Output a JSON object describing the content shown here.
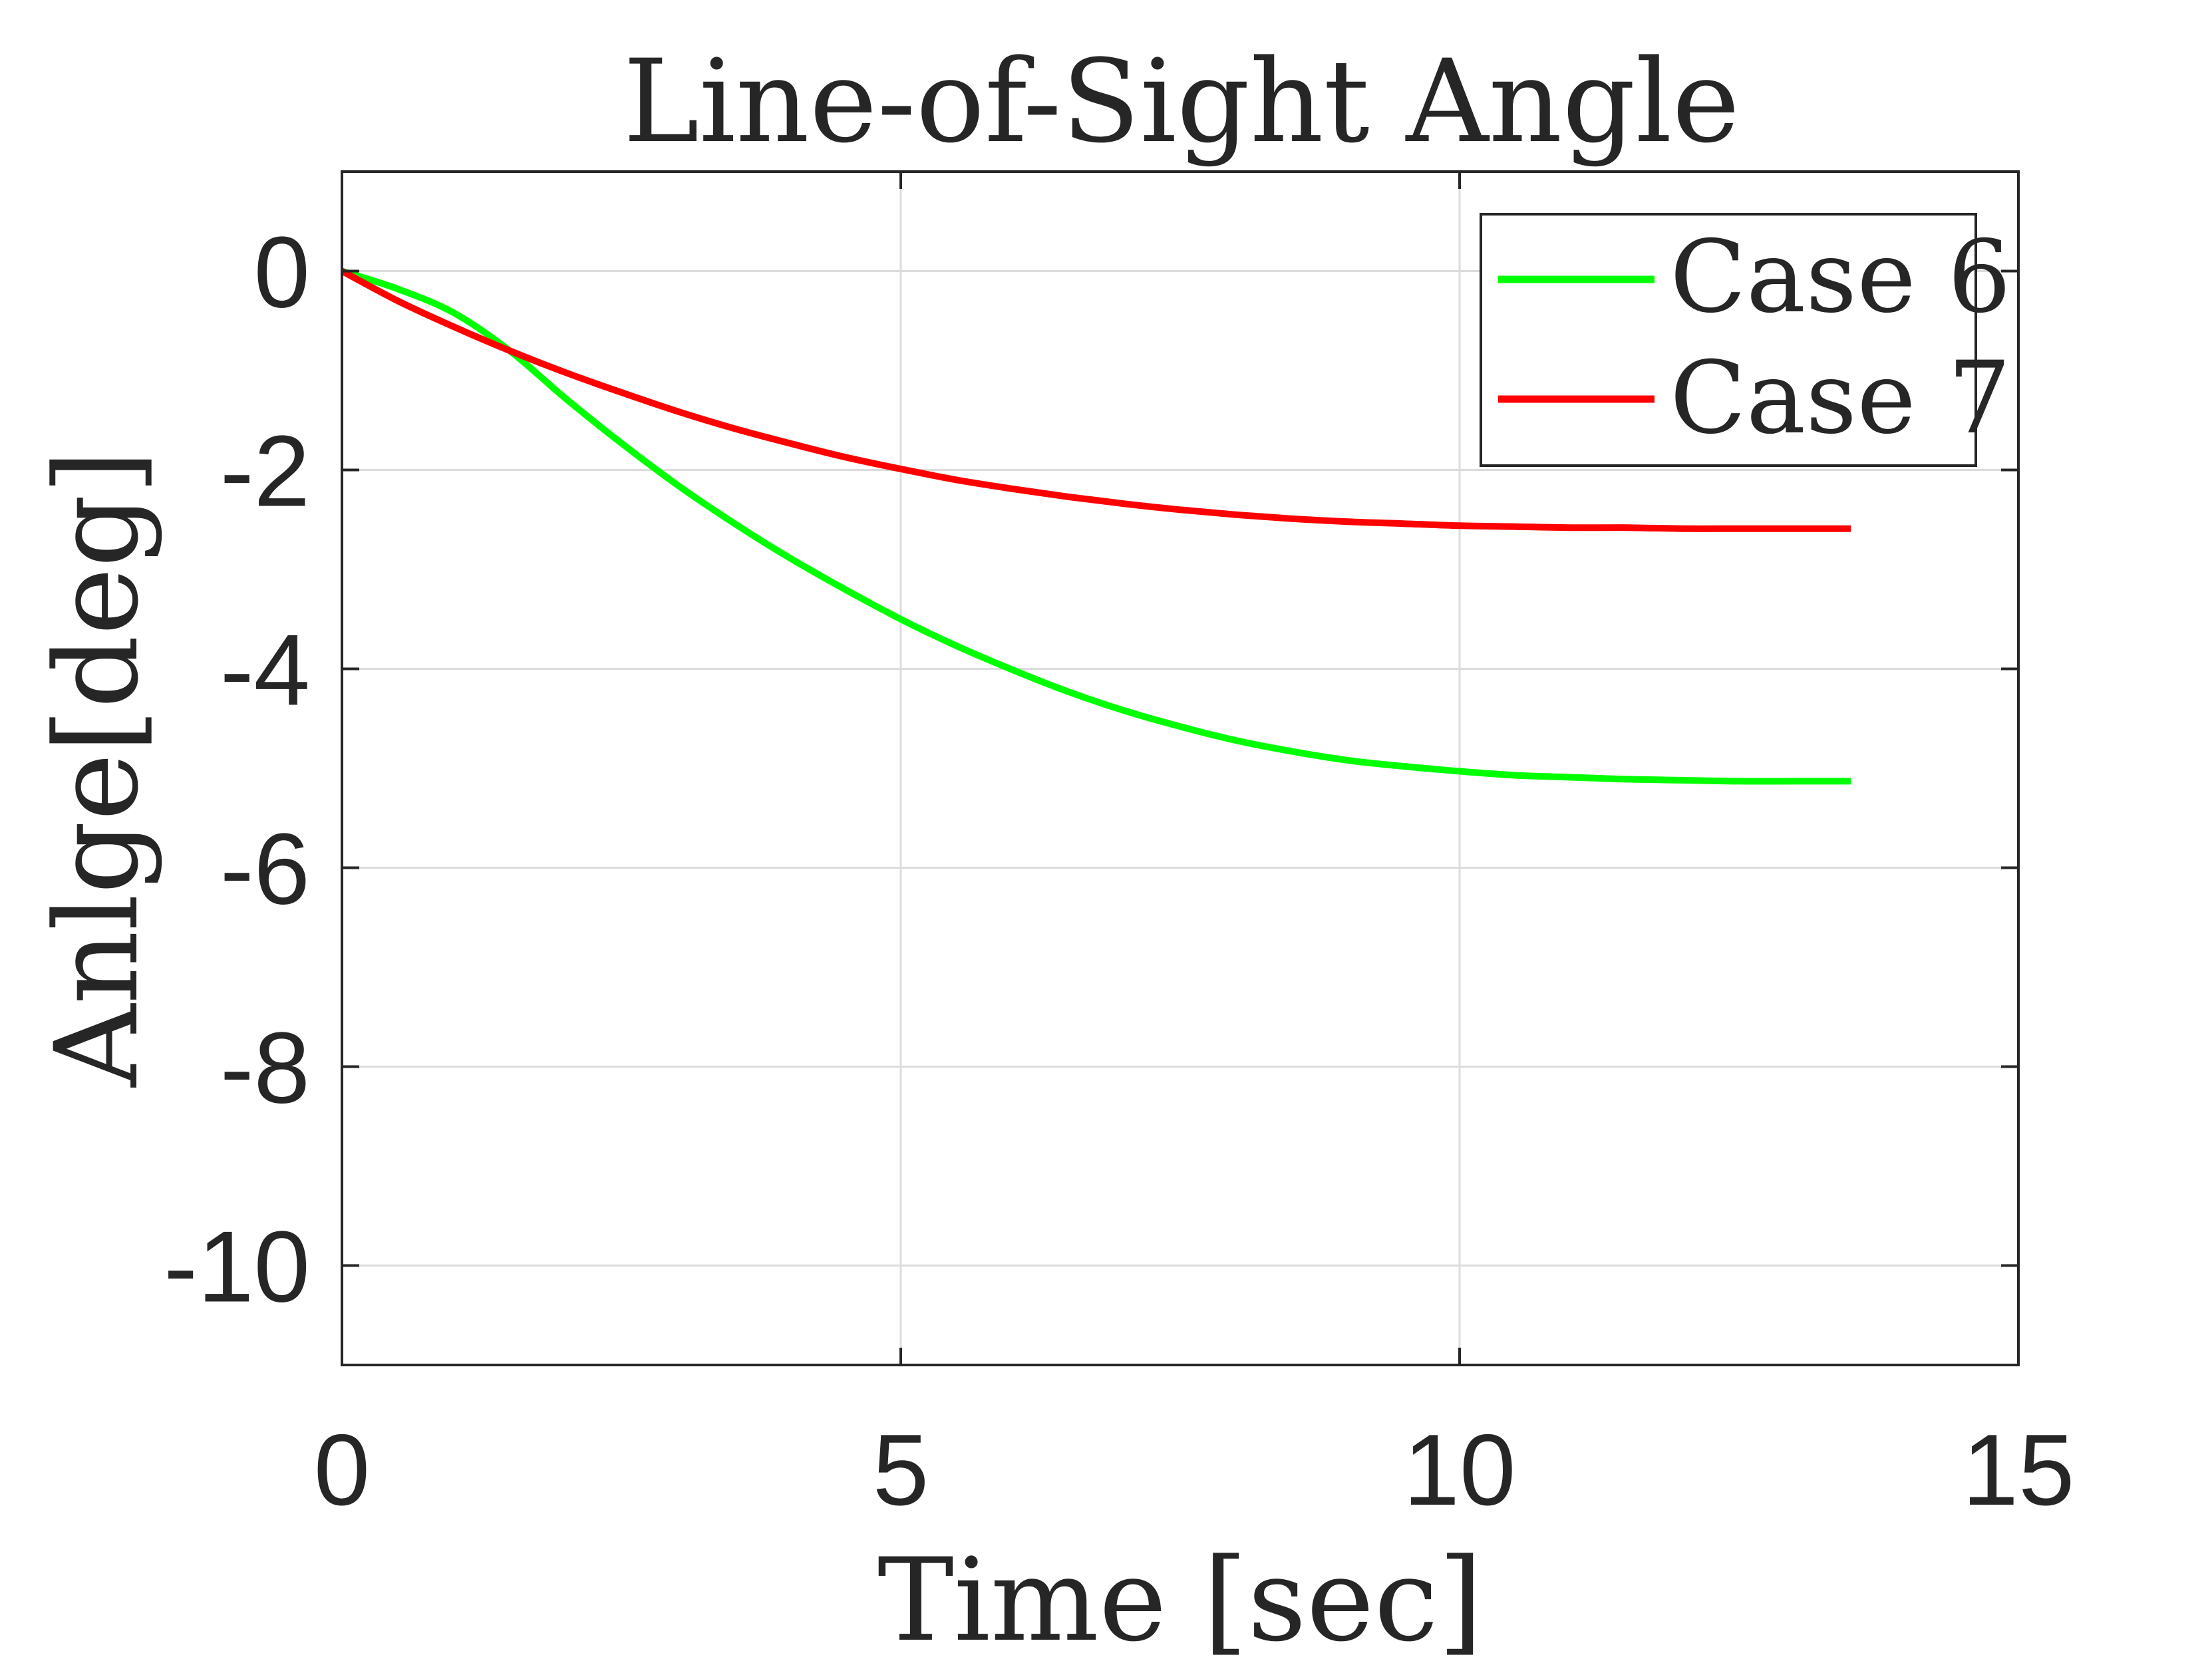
{
  "chart_data": {
    "type": "line",
    "title": "Line-of-Sight Angle",
    "xlabel": "Time [sec]",
    "ylabel": "Anlge[deg]",
    "xlim": [
      0,
      15
    ],
    "ylim": [
      -11,
      1
    ],
    "xticks": [
      0,
      5,
      10,
      15
    ],
    "yticks": [
      0,
      -2,
      -4,
      -6,
      -8,
      -10
    ],
    "xtick_labels": [
      "0",
      "5",
      "10",
      "15"
    ],
    "ytick_labels": [
      "0",
      "-2",
      "-4",
      "-6",
      "-8",
      "-10"
    ],
    "grid": true,
    "legend_position": "top-right",
    "series": [
      {
        "name": "Case 6",
        "color": "#00ff00",
        "x": [
          0,
          0.5,
          1,
          1.5,
          2,
          2.5,
          3,
          3.5,
          4,
          4.5,
          5,
          5.5,
          6,
          6.5,
          7,
          7.5,
          8,
          8.5,
          9,
          9.5,
          10,
          10.5,
          11,
          11.5,
          12,
          12.5,
          13,
          13.5
        ],
        "y": [
          0,
          -0.18,
          -0.42,
          -0.8,
          -1.28,
          -1.73,
          -2.15,
          -2.53,
          -2.88,
          -3.2,
          -3.5,
          -3.77,
          -4.01,
          -4.23,
          -4.42,
          -4.58,
          -4.72,
          -4.83,
          -4.92,
          -4.98,
          -5.03,
          -5.07,
          -5.09,
          -5.11,
          -5.12,
          -5.13,
          -5.13,
          -5.13
        ]
      },
      {
        "name": "Case 7",
        "color": "#ff0000",
        "x": [
          0,
          0.5,
          1,
          1.5,
          2,
          2.5,
          3,
          3.5,
          4,
          4.5,
          5,
          5.5,
          6,
          6.5,
          7,
          7.5,
          8,
          8.5,
          9,
          9.5,
          10,
          10.5,
          11,
          11.5,
          12,
          12.5,
          13,
          13.5
        ],
        "y": [
          0,
          -0.3,
          -0.56,
          -0.8,
          -1.02,
          -1.22,
          -1.41,
          -1.58,
          -1.73,
          -1.87,
          -1.99,
          -2.1,
          -2.19,
          -2.27,
          -2.34,
          -2.4,
          -2.45,
          -2.49,
          -2.52,
          -2.54,
          -2.56,
          -2.57,
          -2.58,
          -2.58,
          -2.59,
          -2.59,
          -2.59,
          -2.59
        ]
      }
    ]
  }
}
